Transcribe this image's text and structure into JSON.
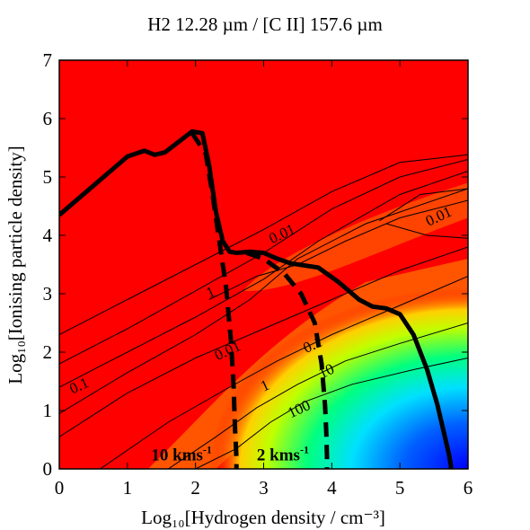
{
  "chart_data": {
    "type": "heatmap",
    "title": "H2 12.28 µm / [C II] 157.6 µm",
    "xlabel": "Log₁₀[Hydrogen density / cm⁻³]",
    "ylabel": "Log₁₀[Ionising particle density]",
    "xlim": [
      0,
      6
    ],
    "ylim": [
      0,
      7
    ],
    "x_ticks": [
      "0",
      "1",
      "2",
      "3",
      "4",
      "5",
      "6"
    ],
    "y_ticks": [
      "0",
      "1",
      "2",
      "3",
      "4",
      "5",
      "6",
      "7"
    ],
    "colormap": [
      "#ff0000",
      "#ff8000",
      "#ffff00",
      "#00ff00",
      "#00ffff",
      "#0000ff"
    ],
    "heatmap_description_levels": [
      "0.01",
      "0.1",
      "1",
      "10",
      "100"
    ],
    "contour_labels": [
      {
        "text": "0.01",
        "x": 3.3,
        "y": 3.95
      },
      {
        "text": "0.01",
        "x": 5.6,
        "y": 4.25
      },
      {
        "text": "1",
        "x": 2.25,
        "y": 2.95
      },
      {
        "text": "0.01",
        "x": 2.5,
        "y": 1.95
      },
      {
        "text": "0.1",
        "x": 0.32,
        "y": 1.35
      },
      {
        "text": "0.1",
        "x": 3.75,
        "y": 2.05
      },
      {
        "text": "1",
        "x": 3.05,
        "y": 1.35
      },
      {
        "text": "100",
        "x": 3.55,
        "y": 0.95
      },
      {
        "text": "10",
        "x": 3.95,
        "y": 1.6
      }
    ],
    "series": [
      {
        "style": "solid",
        "x": [
          0.0,
          0.5,
          1.0,
          1.25,
          1.4,
          1.55,
          1.75,
          1.95,
          2.1,
          2.2,
          2.3,
          2.4,
          2.5,
          2.6,
          2.8,
          3.0,
          3.2,
          3.4,
          3.8,
          4.1,
          4.4,
          4.6,
          4.8,
          5.0,
          5.2,
          5.4,
          5.55,
          5.65,
          5.72,
          5.75,
          5.75
        ],
        "y": [
          4.35,
          4.85,
          5.35,
          5.45,
          5.38,
          5.42,
          5.6,
          5.78,
          5.75,
          5.2,
          4.4,
          3.9,
          3.72,
          3.7,
          3.72,
          3.7,
          3.6,
          3.52,
          3.45,
          3.2,
          2.9,
          2.78,
          2.75,
          2.65,
          2.3,
          1.7,
          1.1,
          0.6,
          0.25,
          0.05,
          0.0
        ]
      },
      {
        "style": "dashed",
        "label": "10 kms⁻¹",
        "x": [
          1.95,
          2.15,
          2.25,
          2.35,
          2.45,
          2.52,
          2.56,
          2.58,
          2.6,
          2.6
        ],
        "y": [
          5.75,
          5.4,
          4.7,
          3.9,
          3.1,
          2.2,
          1.4,
          0.7,
          0.2,
          0.0
        ]
      },
      {
        "style": "dashed",
        "label": "2 kms⁻¹",
        "x": [
          2.75,
          3.0,
          3.3,
          3.55,
          3.75,
          3.85,
          3.9,
          3.92,
          3.93,
          3.93
        ],
        "y": [
          3.7,
          3.6,
          3.35,
          3.0,
          2.5,
          1.8,
          1.1,
          0.6,
          0.2,
          0.0
        ]
      }
    ],
    "velocity_labels": [
      {
        "text": "10 kms",
        "sup": "-1",
        "x": 1.35,
        "y": 0.15
      },
      {
        "text": "2 kms",
        "sup": "-1",
        "x": 2.9,
        "y": 0.15
      }
    ]
  }
}
